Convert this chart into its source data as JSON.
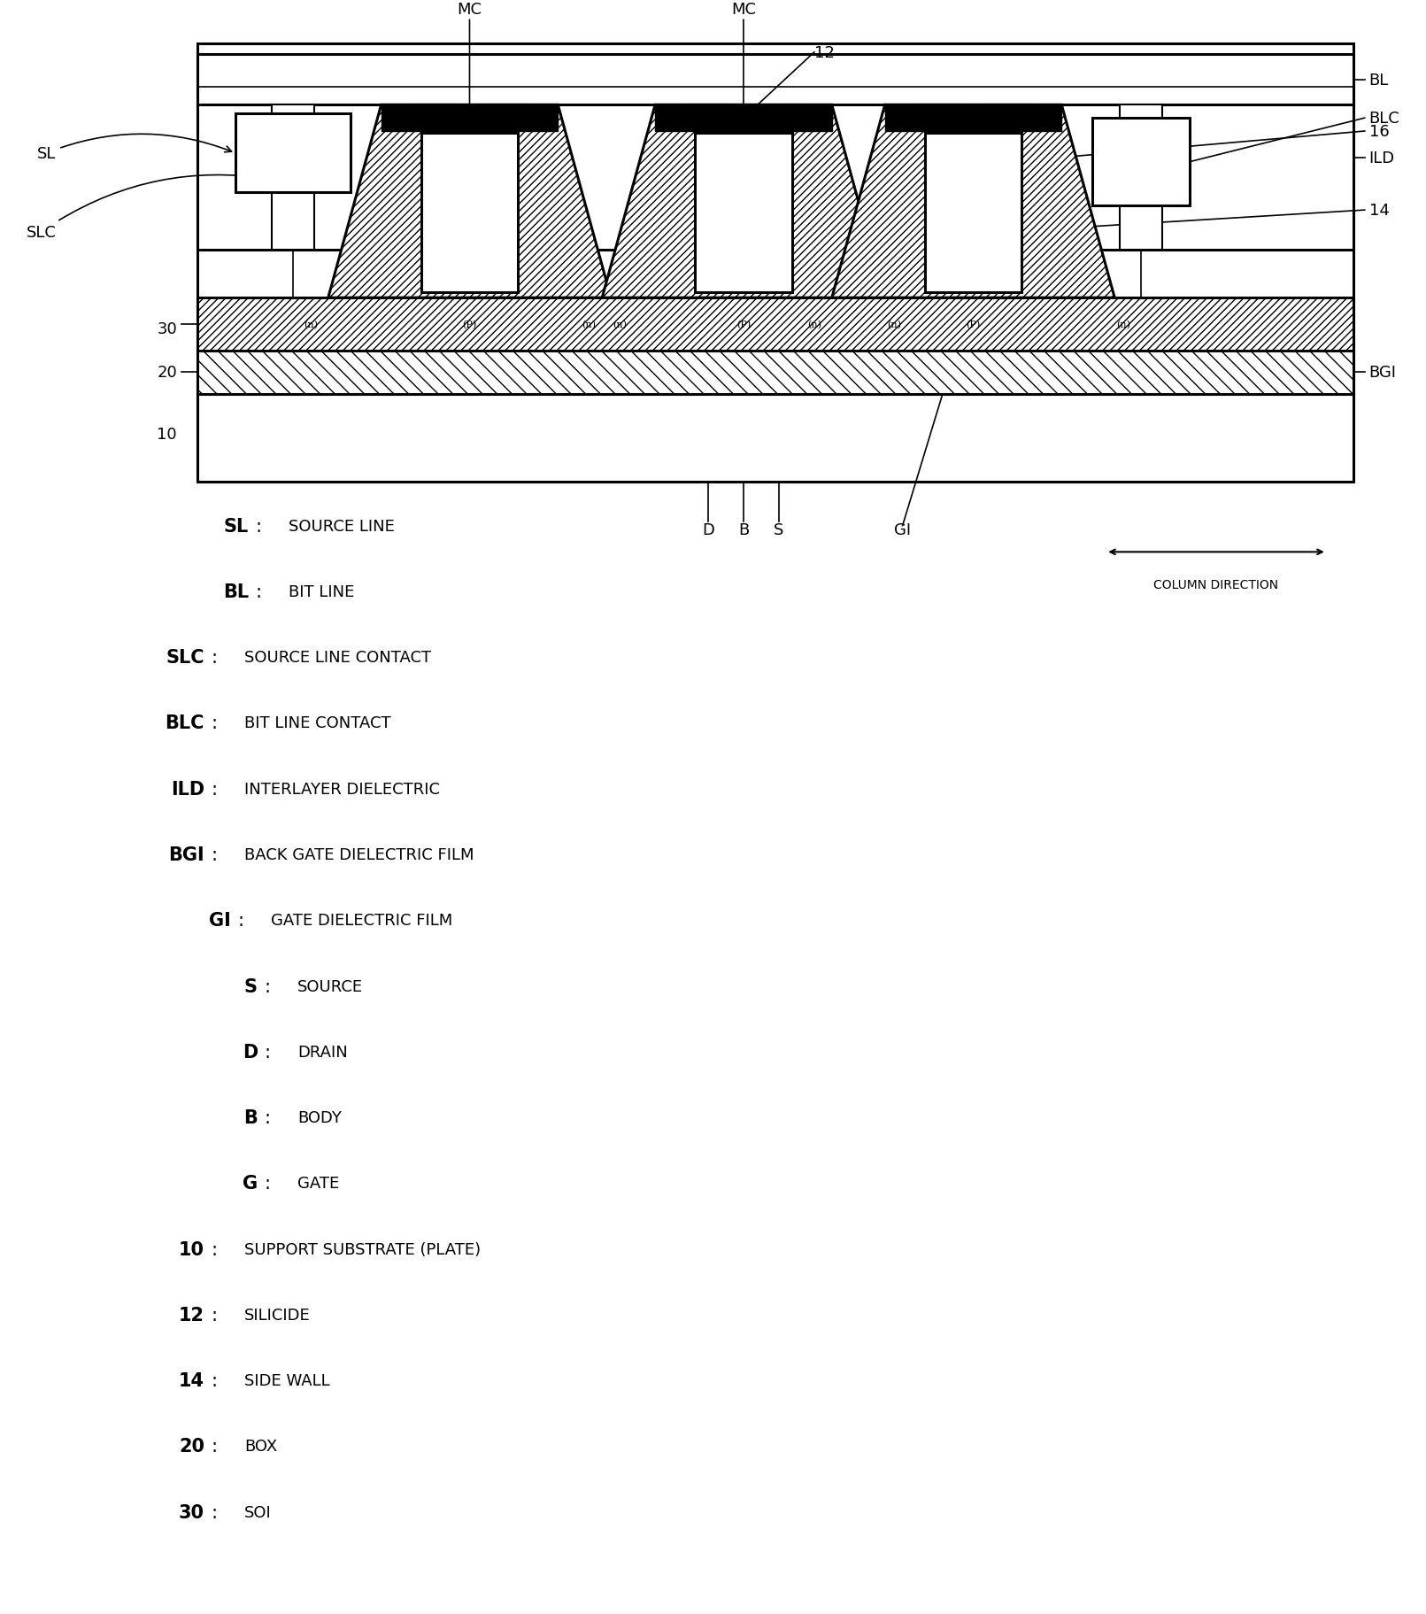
{
  "bg_color": "#ffffff",
  "legend_items": [
    [
      "SL",
      "SOURCE LINE",
      1.8
    ],
    [
      "BL",
      "BIT LINE",
      1.8
    ],
    [
      "SLC",
      "SOURCE LINE CONTACT",
      1.3
    ],
    [
      "BLC",
      "BIT LINE CONTACT",
      1.3
    ],
    [
      "ILD",
      "INTERLAYER DIELECTRIC",
      1.3
    ],
    [
      "BGI",
      "BACK GATE DIELECTRIC FILM",
      1.3
    ],
    [
      "GI",
      "GATE DIELECTRIC FILM",
      1.6
    ],
    [
      "S",
      "SOURCE",
      1.9
    ],
    [
      "D",
      "DRAIN",
      1.9
    ],
    [
      "B",
      "BODY",
      1.9
    ],
    [
      "G",
      "GATE",
      1.9
    ],
    [
      "10",
      "SUPPORT SUBSTRATE (PLATE)",
      1.3
    ],
    [
      "12",
      "SILICIDE",
      1.3
    ],
    [
      "14",
      "SIDE WALL",
      1.3
    ],
    [
      "20",
      "BOX",
      1.3
    ],
    [
      "30",
      "SOI",
      1.3
    ]
  ]
}
